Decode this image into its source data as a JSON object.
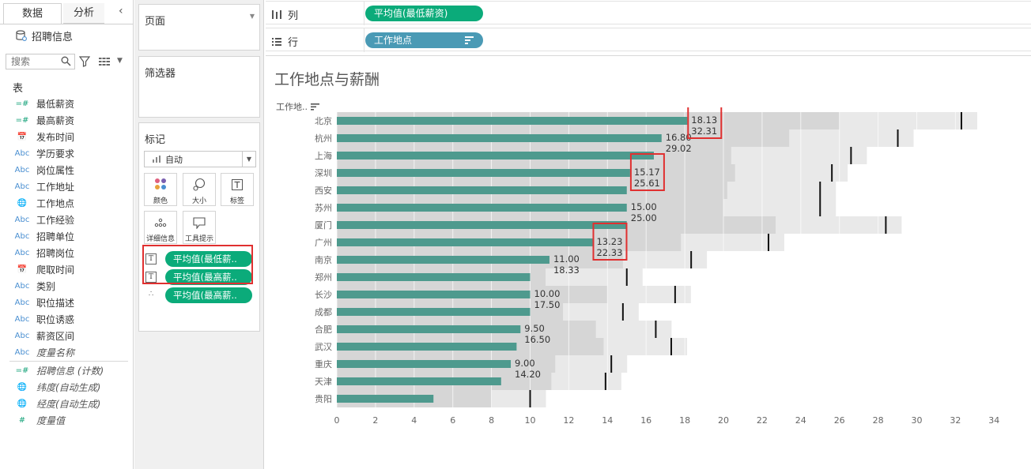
{
  "left_pane": {
    "tabs": [
      "数据",
      "分析"
    ],
    "collapse_icon": "chevron-left-icon",
    "datasource": "招聘信息",
    "search_placeholder": "搜索",
    "section_table": "表",
    "fields": [
      {
        "icon": "=#",
        "type": "measure",
        "label": "最低薪资"
      },
      {
        "icon": "=#",
        "type": "measure",
        "label": "最高薪资"
      },
      {
        "icon": "📅",
        "type": "date",
        "label": "发布时间"
      },
      {
        "icon": "Abc",
        "type": "dim",
        "label": "学历要求"
      },
      {
        "icon": "Abc",
        "type": "dim",
        "label": "岗位属性"
      },
      {
        "icon": "Abc",
        "type": "dim",
        "label": "工作地址"
      },
      {
        "icon": "🌐",
        "type": "geo",
        "label": "工作地点"
      },
      {
        "icon": "Abc",
        "type": "dim",
        "label": "工作经验"
      },
      {
        "icon": "Abc",
        "type": "dim",
        "label": "招聘单位"
      },
      {
        "icon": "Abc",
        "type": "dim",
        "label": "招聘岗位"
      },
      {
        "icon": "📅",
        "type": "date",
        "label": "爬取时间"
      },
      {
        "icon": "Abc",
        "type": "dim",
        "label": "类别"
      },
      {
        "icon": "Abc",
        "type": "dim",
        "label": "职位描述"
      },
      {
        "icon": "Abc",
        "type": "dim",
        "label": "职位诱惑"
      },
      {
        "icon": "Abc",
        "type": "dim",
        "label": "薪资区间"
      },
      {
        "icon": "Abc",
        "type": "dim-italic",
        "label": "度量名称"
      },
      {
        "icon": "=#",
        "type": "measure-italic",
        "label": "招聘信息 (计数)"
      },
      {
        "icon": "🌐",
        "type": "geo-italic",
        "label": "纬度(自动生成)"
      },
      {
        "icon": "🌐",
        "type": "geo-italic",
        "label": "经度(自动生成)"
      },
      {
        "icon": "#",
        "type": "measure-italic",
        "label": "度量值"
      }
    ]
  },
  "cards": {
    "pages": "页面",
    "filters": "筛选器",
    "marks": "标记",
    "mark_type": "自动",
    "mark_buttons": [
      "颜色",
      "大小",
      "标签",
      "详细信息",
      "工具提示"
    ],
    "mark_pills": [
      "平均值(最低薪..",
      "平均值(最高薪..",
      "平均值(最高薪.."
    ]
  },
  "shelves": {
    "columns_label": "列",
    "columns_pill": "平均值(最低薪资)",
    "rows_label": "行",
    "rows_pill": "工作地点",
    "colors": {
      "columns_pill": "#0bab7a",
      "rows_pill": "#4a9ab5"
    }
  },
  "view": {
    "title": "工作地点与薪酬",
    "row_header": "工作地.."
  },
  "chart_data": {
    "type": "bar",
    "categories": [
      "北京",
      "杭州",
      "上海",
      "深圳",
      "西安",
      "苏州",
      "厦门",
      "广州",
      "南京",
      "郑州",
      "长沙",
      "成都",
      "合肥",
      "武汉",
      "重庆",
      "天津",
      "贵阳"
    ],
    "series": [
      {
        "name": "平均值(最低薪资)",
        "values": [
          18.13,
          16.8,
          16.4,
          15.17,
          15.0,
          15.0,
          15.0,
          13.23,
          11.0,
          10.0,
          10.0,
          10.0,
          9.5,
          9.3,
          9.0,
          8.5,
          5.0
        ]
      },
      {
        "name": "平均值(最高薪资)",
        "values": [
          32.31,
          29.02,
          26.6,
          25.61,
          25.0,
          25.0,
          28.4,
          22.33,
          18.33,
          15.0,
          17.5,
          14.8,
          16.5,
          17.3,
          14.2,
          13.9,
          10.0
        ]
      }
    ],
    "band_high_values": [
      26.0,
      23.4,
      20.4,
      20.6,
      20.2,
      20.0,
      22.7,
      17.8,
      14.8,
      10.8,
      14.0,
      11.7,
      13.4,
      13.8,
      11.3,
      11.1,
      8.0
    ],
    "labels": [
      [
        "18.13",
        "32.31"
      ],
      [
        "16.80",
        "29.02"
      ],
      null,
      [
        "15.17",
        "25.61"
      ],
      null,
      [
        "15.00",
        "25.00"
      ],
      null,
      [
        "13.23",
        "22.33"
      ],
      [
        "11.00",
        "18.33"
      ],
      null,
      [
        "10.00",
        "17.50"
      ],
      null,
      [
        "9.50",
        "16.50"
      ],
      null,
      [
        "9.00",
        "14.20"
      ],
      null,
      null
    ],
    "highlighted_rows": [
      0,
      3,
      7
    ],
    "xlim": [
      0,
      35
    ],
    "x_ticks": [
      0,
      2,
      4,
      6,
      8,
      10,
      12,
      14,
      16,
      18,
      20,
      22,
      24,
      26,
      28,
      30,
      32,
      34
    ],
    "colors": {
      "bar": "#4e9a8e",
      "band": "#d6d6d6",
      "band_light": "#e9e9e9",
      "ref_line": "#111111",
      "highlight": "#e03030"
    }
  }
}
